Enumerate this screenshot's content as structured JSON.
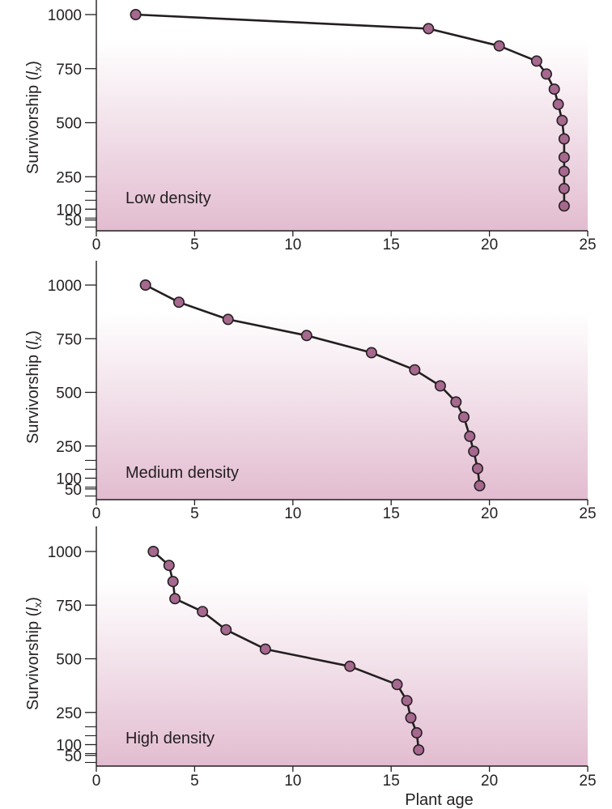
{
  "chart_data": [
    {
      "type": "line",
      "annotation": "Low density",
      "xlabel": "",
      "ylabel_main": "Survivorship (",
      "ylabel_italic": "l",
      "ylabel_sub": "x",
      "ylabel_close": ")",
      "xlim": [
        0,
        25
      ],
      "xticks": [
        0,
        5,
        10,
        15,
        20,
        25
      ],
      "yticks": [
        50,
        100,
        250,
        500,
        750,
        1000
      ],
      "points": [
        {
          "x": 2.0,
          "y": 1000
        },
        {
          "x": 16.9,
          "y": 935
        },
        {
          "x": 20.5,
          "y": 855
        },
        {
          "x": 22.4,
          "y": 785
        },
        {
          "x": 22.9,
          "y": 725
        },
        {
          "x": 23.3,
          "y": 655
        },
        {
          "x": 23.5,
          "y": 585
        },
        {
          "x": 23.7,
          "y": 510
        },
        {
          "x": 23.8,
          "y": 425
        },
        {
          "x": 23.8,
          "y": 340
        },
        {
          "x": 23.8,
          "y": 275
        },
        {
          "x": 23.8,
          "y": 195
        },
        {
          "x": 23.8,
          "y": 115
        }
      ]
    },
    {
      "type": "line",
      "annotation": "Medium density",
      "xlabel": "",
      "ylabel_main": "Survivorship (",
      "ylabel_italic": "l",
      "ylabel_sub": "x",
      "ylabel_close": ")",
      "xlim": [
        0,
        25
      ],
      "xticks": [
        0,
        5,
        10,
        15,
        20,
        25
      ],
      "yticks": [
        50,
        100,
        250,
        500,
        750,
        1000
      ],
      "points": [
        {
          "x": 2.5,
          "y": 1000
        },
        {
          "x": 4.2,
          "y": 920
        },
        {
          "x": 6.7,
          "y": 840
        },
        {
          "x": 10.7,
          "y": 765
        },
        {
          "x": 14.0,
          "y": 685
        },
        {
          "x": 16.2,
          "y": 605
        },
        {
          "x": 17.5,
          "y": 530
        },
        {
          "x": 18.3,
          "y": 455
        },
        {
          "x": 18.7,
          "y": 385
        },
        {
          "x": 19.0,
          "y": 295
        },
        {
          "x": 19.2,
          "y": 225
        },
        {
          "x": 19.4,
          "y": 145
        },
        {
          "x": 19.5,
          "y": 65
        }
      ]
    },
    {
      "type": "line",
      "annotation": "High density",
      "xlabel": "Plant age",
      "ylabel_main": "Survivorship (",
      "ylabel_italic": "l",
      "ylabel_sub": "x",
      "ylabel_close": ")",
      "xlim": [
        0,
        25
      ],
      "xticks": [
        0,
        5,
        10,
        15,
        20,
        25
      ],
      "yticks": [
        50,
        100,
        250,
        500,
        750,
        1000
      ],
      "points": [
        {
          "x": 2.9,
          "y": 1000
        },
        {
          "x": 3.7,
          "y": 935
        },
        {
          "x": 3.9,
          "y": 860
        },
        {
          "x": 4.0,
          "y": 780
        },
        {
          "x": 5.4,
          "y": 720
        },
        {
          "x": 6.6,
          "y": 635
        },
        {
          "x": 8.6,
          "y": 545
        },
        {
          "x": 12.9,
          "y": 465
        },
        {
          "x": 15.3,
          "y": 380
        },
        {
          "x": 15.8,
          "y": 305
        },
        {
          "x": 16.0,
          "y": 225
        },
        {
          "x": 16.3,
          "y": 155
        },
        {
          "x": 16.4,
          "y": 75
        }
      ]
    }
  ],
  "style": {
    "marker_fill": "#a6688e",
    "marker_stroke": "#231f20",
    "line_color": "#231f20",
    "axis_color": "#231f20",
    "gradient_top": "#ffffff",
    "gradient_bottom": "#e2bcd0"
  }
}
